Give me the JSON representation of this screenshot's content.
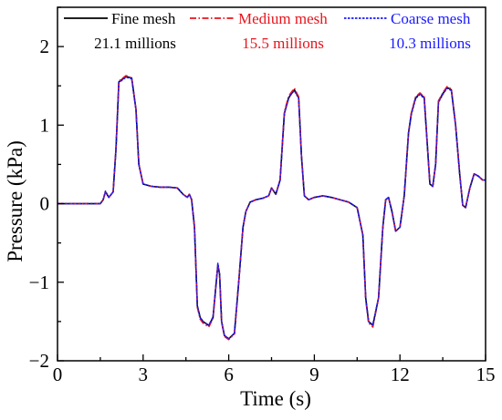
{
  "chart_data": {
    "type": "line",
    "title": "",
    "xlabel": "Time (s)",
    "ylabel": "Pressure (kPa)",
    "xlim": [
      0,
      15
    ],
    "ylim": [
      -2,
      2.5
    ],
    "xticks": [
      0,
      3,
      6,
      9,
      12,
      15
    ],
    "yticks": [
      -2,
      -1,
      0,
      1,
      2
    ],
    "grid": false,
    "legend_position": "top",
    "series": [
      {
        "name": "Fine mesh",
        "note": "21.1 millions",
        "color": "#000000",
        "dash": "solid",
        "x": [
          0,
          1.0,
          1.5,
          1.6,
          1.68,
          1.8,
          1.95,
          2.05,
          2.15,
          2.4,
          2.6,
          2.75,
          2.85,
          3.0,
          3.3,
          3.6,
          3.9,
          4.2,
          4.4,
          4.55,
          4.62,
          4.7,
          4.8,
          4.9,
          5.0,
          5.1,
          5.3,
          5.45,
          5.55,
          5.62,
          5.68,
          5.75,
          5.85,
          6.0,
          6.2,
          6.35,
          6.5,
          6.6,
          6.75,
          6.95,
          7.2,
          7.4,
          7.5,
          7.65,
          7.8,
          7.95,
          8.1,
          8.2,
          8.3,
          8.45,
          8.55,
          8.65,
          8.8,
          9.0,
          9.3,
          9.6,
          9.9,
          10.2,
          10.5,
          10.7,
          10.8,
          10.9,
          11.05,
          11.25,
          11.4,
          11.5,
          11.6,
          11.72,
          11.85,
          12.0,
          12.15,
          12.3,
          12.4,
          12.55,
          12.7,
          12.85,
          12.95,
          13.05,
          13.15,
          13.25,
          13.35,
          13.5,
          13.65,
          13.8,
          13.95,
          14.1,
          14.2,
          14.3,
          14.45,
          14.6,
          14.75,
          14.9,
          15.0
        ],
        "y": [
          0.0,
          0.0,
          0.0,
          0.05,
          0.15,
          0.08,
          0.15,
          0.7,
          1.55,
          1.62,
          1.6,
          1.2,
          0.5,
          0.25,
          0.22,
          0.21,
          0.21,
          0.2,
          0.12,
          0.08,
          0.12,
          0.05,
          -0.3,
          -1.3,
          -1.45,
          -1.5,
          -1.55,
          -1.45,
          -1.05,
          -0.78,
          -0.9,
          -1.5,
          -1.68,
          -1.72,
          -1.65,
          -1.0,
          -0.3,
          -0.1,
          0.02,
          0.05,
          0.07,
          0.1,
          0.2,
          0.12,
          0.3,
          1.15,
          1.35,
          1.4,
          1.45,
          1.35,
          0.6,
          0.1,
          0.05,
          0.08,
          0.1,
          0.08,
          0.05,
          0.02,
          -0.05,
          -0.4,
          -1.2,
          -1.5,
          -1.55,
          -1.2,
          -0.3,
          0.05,
          0.08,
          -0.1,
          -0.35,
          -0.3,
          0.1,
          0.9,
          1.15,
          1.35,
          1.4,
          1.35,
          0.8,
          0.25,
          0.22,
          0.5,
          1.3,
          1.4,
          1.48,
          1.45,
          1.0,
          0.35,
          -0.02,
          -0.05,
          0.2,
          0.38,
          0.35,
          0.3,
          0.3
        ]
      },
      {
        "name": "Medium mesh",
        "note": "15.5 millions",
        "color": "#e8141c",
        "dash": "dashdot",
        "x": [
          0,
          1.0,
          1.5,
          1.6,
          1.68,
          1.8,
          1.95,
          2.05,
          2.15,
          2.4,
          2.6,
          2.75,
          2.85,
          3.0,
          3.3,
          3.6,
          3.9,
          4.2,
          4.4,
          4.55,
          4.62,
          4.7,
          4.8,
          4.9,
          5.0,
          5.1,
          5.3,
          5.45,
          5.55,
          5.62,
          5.68,
          5.75,
          5.85,
          6.0,
          6.2,
          6.35,
          6.5,
          6.6,
          6.75,
          6.95,
          7.2,
          7.4,
          7.5,
          7.65,
          7.8,
          7.95,
          8.1,
          8.2,
          8.3,
          8.45,
          8.55,
          8.65,
          8.8,
          9.0,
          9.3,
          9.6,
          9.9,
          10.2,
          10.5,
          10.7,
          10.8,
          10.9,
          11.05,
          11.25,
          11.4,
          11.5,
          11.6,
          11.72,
          11.85,
          12.0,
          12.15,
          12.3,
          12.4,
          12.55,
          12.7,
          12.85,
          12.95,
          13.05,
          13.15,
          13.25,
          13.35,
          13.5,
          13.65,
          13.8,
          13.95,
          14.1,
          14.2,
          14.3,
          14.45,
          14.6,
          14.75,
          14.9,
          15.0
        ],
        "y": [
          0.0,
          0.0,
          0.0,
          0.05,
          0.15,
          0.08,
          0.15,
          0.72,
          1.56,
          1.63,
          1.6,
          1.2,
          0.5,
          0.25,
          0.22,
          0.21,
          0.21,
          0.2,
          0.12,
          0.08,
          0.12,
          0.05,
          -0.3,
          -1.32,
          -1.47,
          -1.52,
          -1.57,
          -1.46,
          -1.05,
          -0.78,
          -0.9,
          -1.51,
          -1.69,
          -1.73,
          -1.66,
          -1.0,
          -0.3,
          -0.1,
          0.02,
          0.05,
          0.07,
          0.1,
          0.2,
          0.12,
          0.3,
          1.17,
          1.37,
          1.42,
          1.47,
          1.36,
          0.6,
          0.1,
          0.05,
          0.08,
          0.1,
          0.08,
          0.05,
          0.02,
          -0.05,
          -0.4,
          -1.22,
          -1.52,
          -1.57,
          -1.2,
          -0.3,
          0.05,
          0.08,
          -0.1,
          -0.35,
          -0.3,
          0.1,
          0.9,
          1.16,
          1.36,
          1.41,
          1.36,
          0.8,
          0.25,
          0.22,
          0.5,
          1.31,
          1.41,
          1.49,
          1.46,
          1.0,
          0.35,
          -0.02,
          -0.05,
          0.2,
          0.38,
          0.35,
          0.3,
          0.3
        ]
      },
      {
        "name": "Coarse mesh",
        "note": "10.3 millions",
        "color": "#1a1aff",
        "dash": "dotted",
        "x": [
          0,
          1.0,
          1.5,
          1.6,
          1.68,
          1.8,
          1.95,
          2.05,
          2.15,
          2.4,
          2.6,
          2.75,
          2.85,
          3.0,
          3.3,
          3.6,
          3.9,
          4.2,
          4.4,
          4.55,
          4.62,
          4.7,
          4.8,
          4.9,
          5.0,
          5.1,
          5.3,
          5.45,
          5.55,
          5.62,
          5.68,
          5.75,
          5.85,
          6.0,
          6.2,
          6.35,
          6.5,
          6.6,
          6.75,
          6.95,
          7.2,
          7.4,
          7.5,
          7.65,
          7.8,
          7.95,
          8.1,
          8.2,
          8.3,
          8.45,
          8.55,
          8.65,
          8.8,
          9.0,
          9.3,
          9.6,
          9.9,
          10.2,
          10.5,
          10.7,
          10.8,
          10.9,
          11.05,
          11.25,
          11.4,
          11.5,
          11.6,
          11.72,
          11.85,
          12.0,
          12.15,
          12.3,
          12.4,
          12.55,
          12.7,
          12.85,
          12.95,
          13.05,
          13.15,
          13.25,
          13.35,
          13.5,
          13.65,
          13.8,
          13.95,
          14.1,
          14.2,
          14.3,
          14.45,
          14.6,
          14.75,
          14.9,
          15.0
        ],
        "y": [
          0.0,
          0.0,
          0.0,
          0.05,
          0.16,
          0.08,
          0.15,
          0.7,
          1.54,
          1.61,
          1.59,
          1.2,
          0.5,
          0.25,
          0.22,
          0.21,
          0.21,
          0.2,
          0.12,
          0.08,
          0.12,
          0.05,
          -0.3,
          -1.3,
          -1.45,
          -1.5,
          -1.55,
          -1.44,
          -1.05,
          -0.76,
          -0.9,
          -1.5,
          -1.68,
          -1.72,
          -1.65,
          -1.0,
          -0.3,
          -0.1,
          0.02,
          0.05,
          0.07,
          0.1,
          0.2,
          0.12,
          0.3,
          1.15,
          1.34,
          1.4,
          1.44,
          1.34,
          0.6,
          0.1,
          0.05,
          0.08,
          0.1,
          0.08,
          0.05,
          0.02,
          -0.05,
          -0.4,
          -1.2,
          -1.5,
          -1.54,
          -1.2,
          -0.3,
          0.05,
          0.08,
          -0.1,
          -0.35,
          -0.3,
          0.1,
          0.9,
          1.14,
          1.34,
          1.39,
          1.34,
          0.8,
          0.25,
          0.22,
          0.5,
          1.29,
          1.39,
          1.47,
          1.44,
          1.0,
          0.35,
          -0.02,
          -0.05,
          0.2,
          0.38,
          0.35,
          0.3,
          0.3
        ]
      }
    ]
  }
}
